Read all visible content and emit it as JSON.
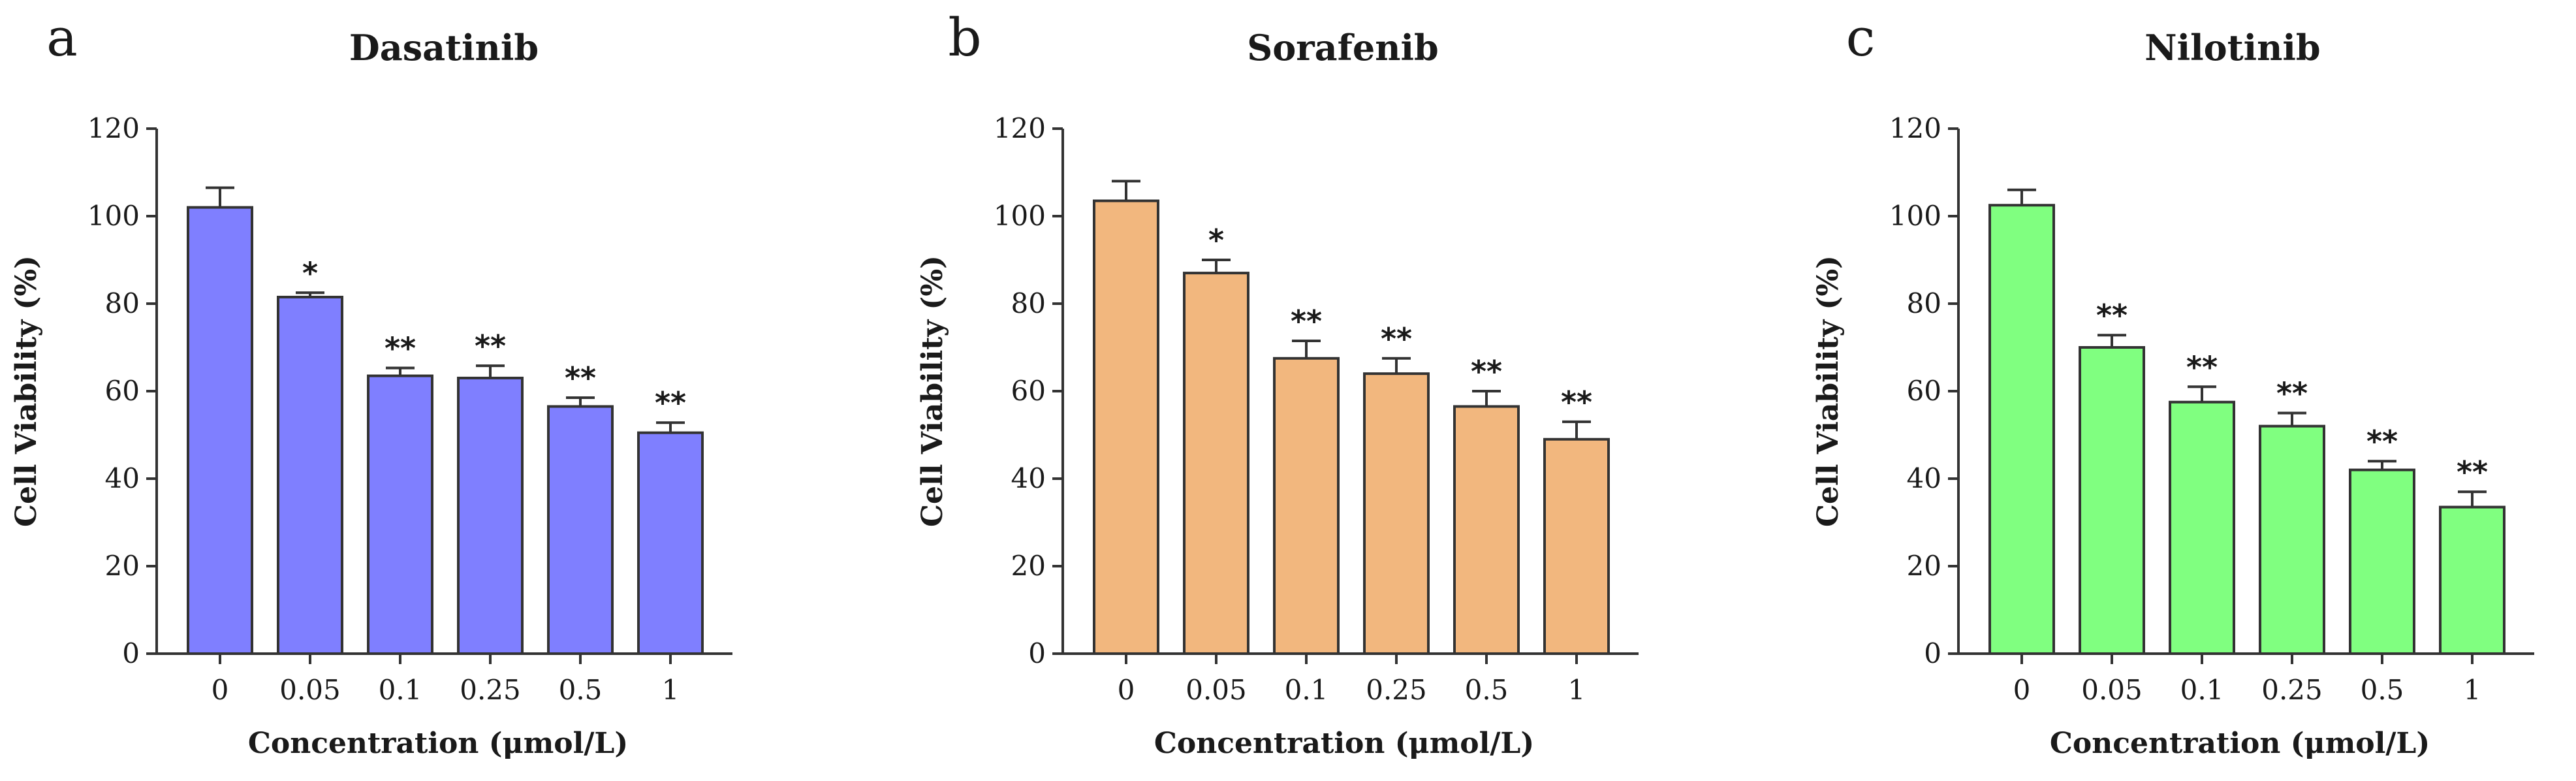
{
  "chart_data": [
    {
      "type": "bar",
      "panel": "a",
      "title": "Dasatinib",
      "xlabel": "Concentration  (μmol/L)",
      "ylabel": "Cell Viability (%)",
      "ylim": [
        0,
        120
      ],
      "yticks": [
        0,
        20,
        40,
        60,
        80,
        100,
        120
      ],
      "categories": [
        "0",
        "0.05",
        "0.1",
        "0.25",
        "0.5",
        "1"
      ],
      "values": [
        102,
        81.5,
        63.5,
        63,
        56.5,
        50.5
      ],
      "errors": [
        4.5,
        1,
        1.8,
        2.8,
        2,
        2.3
      ],
      "significance": [
        "",
        "*",
        "**",
        "**",
        "**",
        "**"
      ],
      "color": "#7f7fff"
    },
    {
      "type": "bar",
      "panel": "b",
      "title": "Sorafenib",
      "xlabel": "Concentration  (μmol/L)",
      "ylabel": "Cell Viability (%)",
      "ylim": [
        0,
        120
      ],
      "yticks": [
        0,
        20,
        40,
        60,
        80,
        100,
        120
      ],
      "categories": [
        "0",
        "0.05",
        "0.1",
        "0.25",
        "0.5",
        "1"
      ],
      "values": [
        103.5,
        87,
        67.5,
        64,
        56.5,
        49
      ],
      "errors": [
        4.5,
        3,
        4,
        3.5,
        3.5,
        4
      ],
      "significance": [
        "",
        "*",
        "**",
        "**",
        "**",
        "**"
      ],
      "color": "#f2b77e"
    },
    {
      "type": "bar",
      "panel": "c",
      "title": "Nilotinib",
      "xlabel": "Concentration  (μmol/L)",
      "ylabel": "Cell Viability (%)",
      "ylim": [
        0,
        120
      ],
      "yticks": [
        0,
        20,
        40,
        60,
        80,
        100,
        120
      ],
      "categories": [
        "0",
        "0.05",
        "0.1",
        "0.25",
        "0.5",
        "1"
      ],
      "values": [
        102.5,
        70,
        57.5,
        52,
        42,
        33.5
      ],
      "errors": [
        3.5,
        2.8,
        3.5,
        3,
        2,
        3.5
      ],
      "significance": [
        "",
        "**",
        "**",
        "**",
        "**",
        "**"
      ],
      "color": "#80ff80"
    }
  ]
}
